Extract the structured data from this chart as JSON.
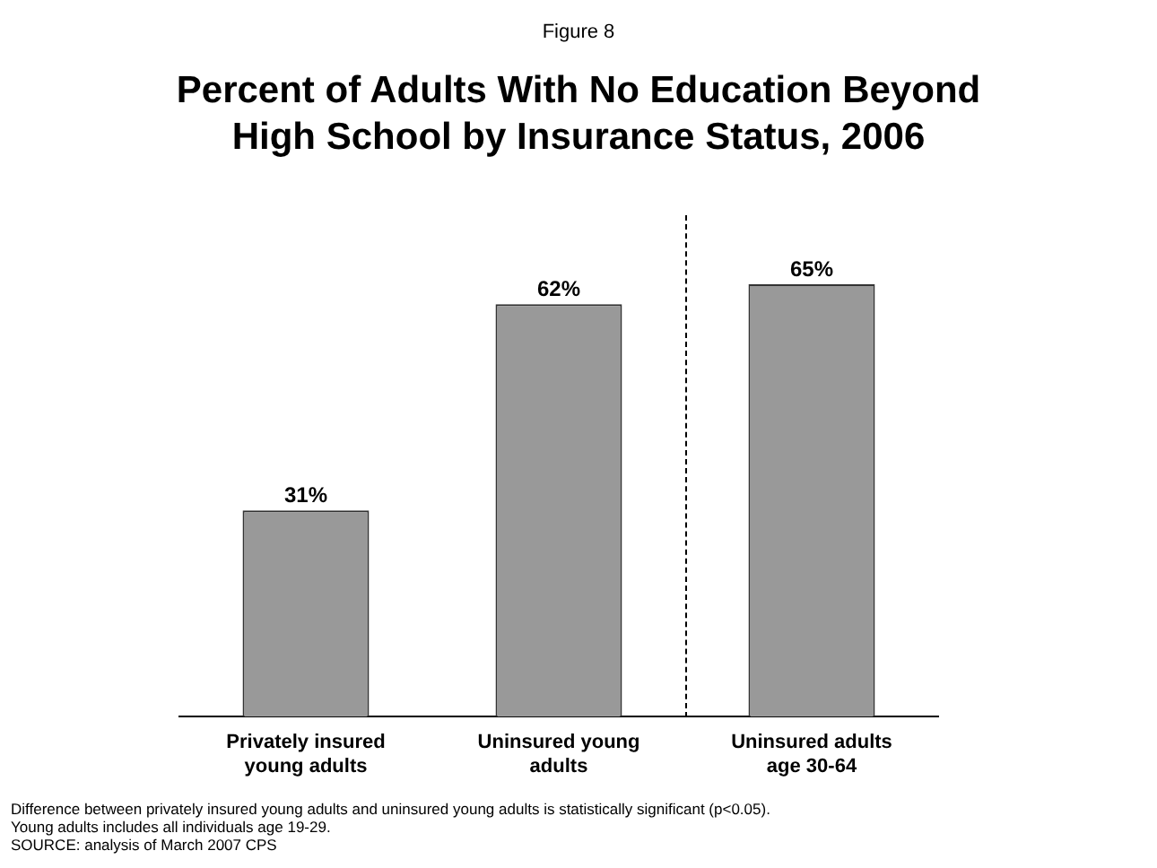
{
  "chart_data": {
    "type": "bar",
    "subtitle": "Figure 8",
    "title": "Percent of Adults With No Education Beyond High School by Insurance Status, 2006",
    "categories": [
      "Privately insured young adults",
      "Uninsured young adults",
      "Uninsured adults age 30-64"
    ],
    "values": [
      31,
      62,
      65
    ],
    "value_labels": [
      "31%",
      "62%",
      "65%"
    ],
    "color": "#999999",
    "grid": false,
    "legend": false,
    "annotations": [
      "Difference between privately insured young adults and uninsured young adults is statistically significant (p<0.05). Young adults includes all individuals age 19-29.",
      "SOURCE: analysis of March 2007 CPS"
    ]
  }
}
